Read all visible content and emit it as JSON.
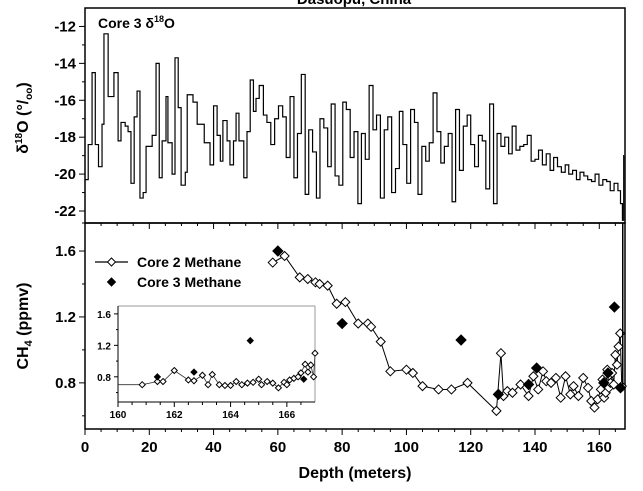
{
  "chart_data": [
    {
      "type": "line",
      "title": "Dasuopu, China",
      "panel_label": "Core 3 δ18O",
      "panel_label_parts": {
        "prefix": "Core 3 δ",
        "sup": "18",
        "suffix": "O"
      },
      "ylabel": "δ18O (‰)",
      "ylabel_parts": {
        "delta": "δ",
        "sup": "18",
        "main": "O (°/",
        "sub": "oo",
        "end": ")"
      },
      "xlabel": "Depth (meters)",
      "xlim": [
        0,
        168
      ],
      "ylim": [
        -22.65,
        -11.0
      ],
      "yticks": [
        -12,
        -14,
        -16,
        -18,
        -20,
        -22
      ],
      "ytick_labels": [
        "-12",
        "-14",
        "-16",
        "-18",
        "-20",
        "-22"
      ],
      "step": true,
      "series": [
        {
          "name": "Core 3 δ18O",
          "x": [
            0,
            1,
            2.2,
            3.2,
            4.2,
            5.3,
            5.9,
            7.2,
            9.0,
            10.3,
            11.2,
            12.5,
            13.4,
            14.3,
            15.3,
            16.2,
            17.1,
            18.1,
            19.0,
            20.9,
            22.1,
            23.1,
            24.0,
            25.2,
            25.8,
            27.1,
            28.0,
            29.0,
            29.9,
            31.2,
            31.8,
            33.6,
            34.9,
            37.1,
            38.9,
            40.0,
            41.1,
            42.1,
            42.9,
            44.2,
            45.1,
            46.2,
            47.0,
            47.9,
            49.4,
            50.4,
            51.4,
            52.4,
            53.2,
            54.2,
            55.5,
            56.6,
            57.8,
            59.0,
            60.2,
            61.5,
            62.6,
            63.8,
            65.0,
            66.1,
            67.3,
            68.5,
            69.6,
            70.8,
            72.0,
            73.1,
            74.3,
            75.5,
            76.6,
            77.8,
            79.0,
            80.2,
            81.3,
            82.5,
            83.7,
            84.9,
            86.0,
            87.2,
            88.4,
            89.6,
            90.7,
            91.9,
            93.1,
            94.2,
            95.4,
            96.6,
            97.8,
            98.9,
            100.1,
            101.3,
            102.5,
            103.6,
            104.8,
            106.0,
            107.1,
            108.3,
            109.5,
            110.7,
            111.8,
            113.0,
            114.2,
            115.3,
            116.5,
            117.7,
            118.9,
            120.0,
            121.2,
            122.4,
            123.6,
            124.7,
            125.9,
            127.1,
            128.2,
            129.4,
            130.6,
            131.8,
            132.9,
            134.1,
            135.3,
            136.5,
            137.6,
            138.8,
            140.0,
            141.1,
            142.3,
            143.5,
            144.7,
            145.8,
            147.0,
            148.2,
            149.4,
            150.5,
            151.7,
            152.9,
            154.0,
            155.2,
            156.4,
            157.6,
            158.7,
            159.9,
            161.1,
            162.3,
            163.4,
            164.6,
            165.8,
            166.6,
            167.2,
            167.6
          ],
          "y": [
            -20.3,
            -18.4,
            -14.5,
            -18.4,
            -19.6,
            -17.3,
            -12.4,
            -15.8,
            -14.5,
            -18.2,
            -17.2,
            -17.4,
            -17.7,
            -20.5,
            -16.9,
            -15.5,
            -21.3,
            -21.0,
            -18.5,
            -17.9,
            -14.0,
            -20.2,
            -18.2,
            -15.8,
            -18.3,
            -20.0,
            -13.7,
            -16.4,
            -20.6,
            -19.9,
            -15.7,
            -16.1,
            -17.3,
            -18.3,
            -19.5,
            -16.3,
            -17.9,
            -19.3,
            -17.1,
            -18.2,
            -19.5,
            -18.2,
            -16.7,
            -18.2,
            -20.2,
            -17.7,
            -14.9,
            -16.6,
            -15.9,
            -15.2,
            -16.8,
            -17.2,
            -18.4,
            -17.0,
            -16.3,
            -16.9,
            -19.1,
            -15.8,
            -20.2,
            -17.8,
            -14.6,
            -21.1,
            -17.6,
            -18.8,
            -21.3,
            -17.0,
            -17.5,
            -19.6,
            -16.2,
            -20.1,
            -20.6,
            -16.1,
            -16.5,
            -19.1,
            -17.7,
            -21.6,
            -17.8,
            -19.2,
            -15.2,
            -17.6,
            -16.8,
            -21.3,
            -17.6,
            -16.9,
            -21.0,
            -19.7,
            -16.6,
            -18.4,
            -20.5,
            -16.5,
            -17.2,
            -21.1,
            -18.5,
            -19.3,
            -18.3,
            -15.6,
            -17.7,
            -19.4,
            -18.5,
            -17.8,
            -21.5,
            -16.5,
            -19.8,
            -17.4,
            -16.8,
            -18.4,
            -19.6,
            -17.9,
            -18.2,
            -20.8,
            -16.2,
            -21.6,
            -17.8,
            -18.5,
            -18.0,
            -18.9,
            -17.4,
            -18.7,
            -18.5,
            -18.4,
            -17.9,
            -19.3,
            -19.2,
            -18.7,
            -19.5,
            -18.9,
            -19.8,
            -19.1,
            -19.6,
            -19.9,
            -19.5,
            -20.0,
            -19.8,
            -20.3,
            -19.9,
            -20.1,
            -20.3,
            -20.4,
            -20.0,
            -20.6,
            -20.3,
            -20.4,
            -20.9,
            -20.5,
            -20.9,
            -21.6,
            -22.5,
            -19.0
          ]
        }
      ]
    },
    {
      "type": "line",
      "ylabel": "CH4 (ppmv)",
      "ylabel_parts": {
        "main": "CH",
        "sub": "4",
        "end": " (ppmv)"
      },
      "xlabel": "Depth (meters)",
      "xlim": [
        0,
        168
      ],
      "ylim": [
        0.52,
        1.77
      ],
      "xticks": [
        0,
        20,
        40,
        60,
        80,
        100,
        120,
        140,
        160
      ],
      "xtick_labels": [
        "0",
        "20",
        "40",
        "60",
        "80",
        "100",
        "120",
        "140",
        "160"
      ],
      "yticks": [
        1.6,
        1.2,
        0.8
      ],
      "ytick_labels": [
        "1.6",
        "1.2",
        "0.8"
      ],
      "legend": {
        "position": "top-left",
        "entries": [
          "Core 2 Methane",
          "Core 3 Methane"
        ]
      },
      "series": [
        {
          "name": "Core 2 Methane",
          "marker": "open-diamond",
          "line": true,
          "x": [
            58.4,
            62.1,
            66.8,
            69.3,
            71.7,
            73.0,
            75.5,
            78.3,
            81.0,
            85.0,
            88.0,
            89.0,
            92.0,
            95.0,
            100.0,
            102.0,
            105.0,
            110.0,
            114.0,
            119.0,
            128.0,
            129.4,
            130.2,
            131.4,
            133.0,
            135.5,
            138.0,
            139.5,
            141.0,
            142.5,
            143.5,
            145.0,
            146.5,
            148.0,
            149.5,
            151.0,
            152.0,
            153.5,
            155.0,
            156.5,
            157.5,
            158.5,
            159.5,
            160.5,
            161.0,
            161.5,
            162.0,
            162.5,
            163.0,
            163.5,
            164.0,
            164.5,
            165.0,
            165.5,
            166.0,
            166.5,
            167.0
          ],
          "y": [
            1.53,
            1.57,
            1.44,
            1.43,
            1.41,
            1.4,
            1.39,
            1.28,
            1.29,
            1.16,
            1.16,
            1.14,
            1.05,
            0.87,
            0.88,
            0.86,
            0.78,
            0.76,
            0.76,
            0.8,
            0.63,
            0.98,
            0.72,
            0.75,
            0.74,
            0.79,
            0.72,
            0.84,
            0.76,
            0.87,
            0.81,
            0.8,
            0.83,
            0.71,
            0.84,
            0.73,
            0.78,
            0.72,
            0.83,
            0.77,
            0.69,
            0.65,
            0.7,
            0.76,
            0.82,
            0.71,
            0.74,
            0.88,
            0.77,
            0.8,
            0.86,
            0.79,
            0.97,
            0.91,
            1.02,
            1.1,
            0.78
          ]
        },
        {
          "name": "Core 3 Methane",
          "marker": "filled-diamond",
          "line": false,
          "x": [
            60.0,
            80.0,
            117.0,
            128.6,
            138.0,
            140.5,
            161.4,
            162.7,
            164.7,
            166.6
          ],
          "y": [
            1.6,
            1.16,
            1.06,
            0.73,
            0.79,
            0.89,
            0.8,
            0.86,
            1.26,
            0.77
          ]
        }
      ]
    },
    {
      "type": "line",
      "role": "inset",
      "xlim": [
        160,
        167
      ],
      "ylim": [
        0.48,
        1.7
      ],
      "xticks": [
        160,
        162,
        164,
        166
      ],
      "xtick_labels": [
        "160",
        "162",
        "164",
        "166"
      ],
      "yticks": [
        1.6,
        1.2,
        0.8
      ],
      "ytick_labels": [
        "1.6",
        "1.2",
        "0.8"
      ],
      "series": [
        {
          "name": "Core 2 Methane",
          "marker": "open-diamond",
          "line": true,
          "x": [
            160.0,
            160.86,
            161.4,
            161.6,
            162.0,
            162.5,
            162.7,
            163.0,
            163.2,
            163.35,
            163.6,
            163.8,
            164.0,
            164.2,
            164.4,
            164.6,
            164.8,
            165.0,
            165.1,
            165.3,
            165.5,
            165.7,
            165.9,
            166.0,
            166.1,
            166.25,
            166.4,
            166.5,
            166.65,
            166.75,
            166.85,
            166.95,
            167.0
          ],
          "y": [
            0.7,
            0.7,
            0.74,
            0.74,
            0.88,
            0.76,
            0.75,
            0.82,
            0.7,
            0.83,
            0.7,
            0.69,
            0.69,
            0.74,
            0.7,
            0.72,
            0.73,
            0.77,
            0.7,
            0.74,
            0.72,
            0.66,
            0.73,
            0.7,
            0.76,
            0.78,
            0.8,
            0.85,
            0.96,
            0.86,
            0.95,
            0.8,
            1.1
          ]
        },
        {
          "name": "Core 3 Methane",
          "marker": "filled-diamond",
          "line": false,
          "x": [
            161.4,
            162.7,
            164.7,
            166.6
          ],
          "y": [
            0.8,
            0.86,
            1.26,
            0.77
          ]
        }
      ]
    }
  ],
  "colors": {
    "line": "#000000",
    "inset_frame": "#999999",
    "background": "#ffffff"
  }
}
